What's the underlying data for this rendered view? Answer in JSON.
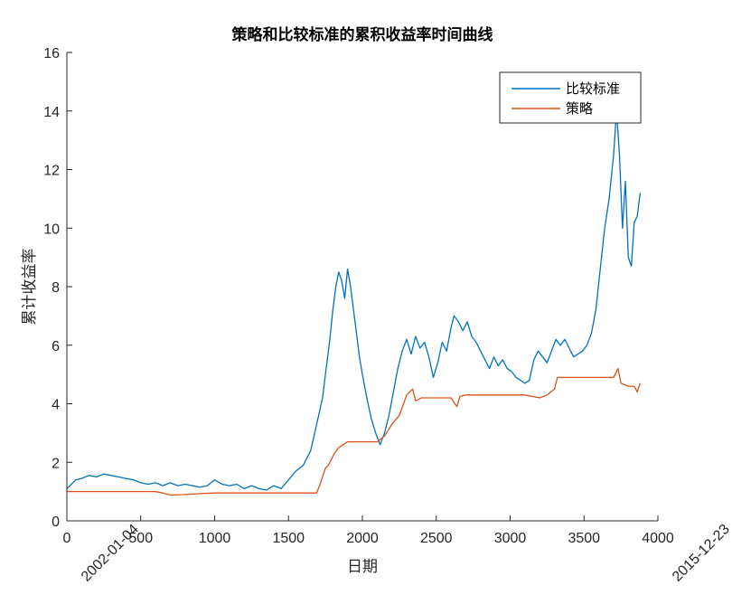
{
  "chart_data": {
    "type": "line",
    "title": "策略和比较标准的累积收益率时间曲线",
    "xlabel": "日期",
    "ylabel": "累计收益率",
    "xlim": [
      0,
      4000
    ],
    "ylim": [
      0,
      16
    ],
    "xticks": [
      0,
      500,
      1000,
      1500,
      2000,
      2500,
      3000,
      3500,
      4000
    ],
    "yticks": [
      0,
      2,
      4,
      6,
      8,
      10,
      12,
      14,
      16
    ],
    "date_labels": [
      {
        "x": 0,
        "text": "2002-01-04"
      },
      {
        "x": 4000,
        "text": "2015-12-23"
      }
    ],
    "grid": false,
    "legend": "top-right",
    "series": [
      {
        "name": "比较标准",
        "color": "#0072BD",
        "points": [
          [
            0,
            1.1
          ],
          [
            60,
            1.4
          ],
          [
            100,
            1.45
          ],
          [
            150,
            1.55
          ],
          [
            200,
            1.5
          ],
          [
            250,
            1.6
          ],
          [
            300,
            1.55
          ],
          [
            350,
            1.5
          ],
          [
            400,
            1.45
          ],
          [
            450,
            1.4
          ],
          [
            500,
            1.3
          ],
          [
            550,
            1.25
          ],
          [
            600,
            1.3
          ],
          [
            650,
            1.2
          ],
          [
            700,
            1.3
          ],
          [
            750,
            1.2
          ],
          [
            800,
            1.25
          ],
          [
            850,
            1.2
          ],
          [
            900,
            1.15
          ],
          [
            950,
            1.2
          ],
          [
            1000,
            1.4
          ],
          [
            1050,
            1.25
          ],
          [
            1100,
            1.2
          ],
          [
            1150,
            1.25
          ],
          [
            1200,
            1.1
          ],
          [
            1250,
            1.2
          ],
          [
            1300,
            1.1
          ],
          [
            1350,
            1.05
          ],
          [
            1400,
            1.2
          ],
          [
            1450,
            1.1
          ],
          [
            1500,
            1.4
          ],
          [
            1550,
            1.7
          ],
          [
            1600,
            1.9
          ],
          [
            1650,
            2.4
          ],
          [
            1700,
            3.5
          ],
          [
            1730,
            4.2
          ],
          [
            1750,
            5.0
          ],
          [
            1780,
            6.2
          ],
          [
            1800,
            7.2
          ],
          [
            1820,
            8.0
          ],
          [
            1840,
            8.5
          ],
          [
            1860,
            8.2
          ],
          [
            1880,
            7.6
          ],
          [
            1900,
            8.6
          ],
          [
            1920,
            8.0
          ],
          [
            1940,
            7.2
          ],
          [
            1960,
            6.4
          ],
          [
            1980,
            5.6
          ],
          [
            2000,
            5.0
          ],
          [
            2030,
            4.2
          ],
          [
            2060,
            3.5
          ],
          [
            2090,
            3.0
          ],
          [
            2120,
            2.6
          ],
          [
            2150,
            3.0
          ],
          [
            2180,
            3.6
          ],
          [
            2210,
            4.4
          ],
          [
            2240,
            5.2
          ],
          [
            2270,
            5.8
          ],
          [
            2300,
            6.2
          ],
          [
            2330,
            5.7
          ],
          [
            2360,
            6.3
          ],
          [
            2390,
            5.9
          ],
          [
            2420,
            6.1
          ],
          [
            2450,
            5.6
          ],
          [
            2480,
            4.9
          ],
          [
            2510,
            5.4
          ],
          [
            2540,
            6.1
          ],
          [
            2570,
            5.8
          ],
          [
            2600,
            6.6
          ],
          [
            2620,
            7.0
          ],
          [
            2650,
            6.8
          ],
          [
            2680,
            6.5
          ],
          [
            2710,
            6.8
          ],
          [
            2740,
            6.3
          ],
          [
            2770,
            6.1
          ],
          [
            2800,
            5.8
          ],
          [
            2830,
            5.5
          ],
          [
            2860,
            5.2
          ],
          [
            2890,
            5.6
          ],
          [
            2920,
            5.3
          ],
          [
            2950,
            5.5
          ],
          [
            2980,
            5.2
          ],
          [
            3010,
            5.1
          ],
          [
            3040,
            4.9
          ],
          [
            3070,
            4.8
          ],
          [
            3100,
            4.7
          ],
          [
            3130,
            4.8
          ],
          [
            3160,
            5.5
          ],
          [
            3190,
            5.8
          ],
          [
            3220,
            5.6
          ],
          [
            3250,
            5.4
          ],
          [
            3280,
            5.8
          ],
          [
            3310,
            6.2
          ],
          [
            3340,
            6.0
          ],
          [
            3370,
            6.2
          ],
          [
            3400,
            5.9
          ],
          [
            3430,
            5.6
          ],
          [
            3460,
            5.7
          ],
          [
            3490,
            5.8
          ],
          [
            3520,
            6.0
          ],
          [
            3550,
            6.4
          ],
          [
            3580,
            7.2
          ],
          [
            3610,
            8.6
          ],
          [
            3640,
            10.0
          ],
          [
            3670,
            11.0
          ],
          [
            3700,
            12.5
          ],
          [
            3720,
            14.0
          ],
          [
            3740,
            12.5
          ],
          [
            3760,
            10.0
          ],
          [
            3780,
            11.6
          ],
          [
            3800,
            9.0
          ],
          [
            3820,
            8.7
          ],
          [
            3840,
            10.2
          ],
          [
            3860,
            10.4
          ],
          [
            3880,
            11.2
          ]
        ]
      },
      {
        "name": "策略",
        "color": "#D95319",
        "points": [
          [
            0,
            1.0
          ],
          [
            300,
            1.0
          ],
          [
            500,
            1.0
          ],
          [
            600,
            1.0
          ],
          [
            650,
            0.95
          ],
          [
            700,
            0.88
          ],
          [
            800,
            0.9
          ],
          [
            900,
            0.93
          ],
          [
            1000,
            0.95
          ],
          [
            1200,
            0.95
          ],
          [
            1400,
            0.95
          ],
          [
            1600,
            0.95
          ],
          [
            1690,
            0.95
          ],
          [
            1710,
            1.2
          ],
          [
            1730,
            1.5
          ],
          [
            1750,
            1.8
          ],
          [
            1770,
            1.9
          ],
          [
            1790,
            2.1
          ],
          [
            1810,
            2.3
          ],
          [
            1840,
            2.5
          ],
          [
            1870,
            2.6
          ],
          [
            1900,
            2.7
          ],
          [
            2000,
            2.7
          ],
          [
            2100,
            2.7
          ],
          [
            2150,
            2.9
          ],
          [
            2200,
            3.3
          ],
          [
            2250,
            3.6
          ],
          [
            2300,
            4.3
          ],
          [
            2340,
            4.5
          ],
          [
            2360,
            4.1
          ],
          [
            2400,
            4.2
          ],
          [
            2500,
            4.2
          ],
          [
            2600,
            4.2
          ],
          [
            2640,
            3.9
          ],
          [
            2660,
            4.25
          ],
          [
            2700,
            4.3
          ],
          [
            2900,
            4.3
          ],
          [
            3100,
            4.3
          ],
          [
            3200,
            4.2
          ],
          [
            3250,
            4.3
          ],
          [
            3300,
            4.5
          ],
          [
            3320,
            4.9
          ],
          [
            3500,
            4.9
          ],
          [
            3700,
            4.9
          ],
          [
            3730,
            5.2
          ],
          [
            3750,
            4.7
          ],
          [
            3800,
            4.6
          ],
          [
            3840,
            4.6
          ],
          [
            3860,
            4.4
          ],
          [
            3880,
            4.7
          ]
        ]
      }
    ]
  }
}
